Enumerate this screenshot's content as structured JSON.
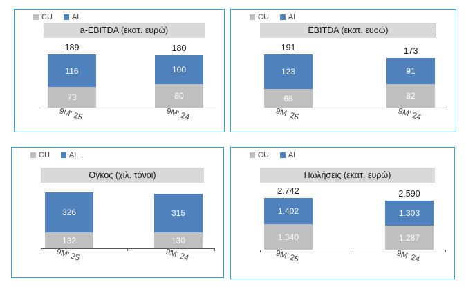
{
  "colors": {
    "cu": "#BFBFBF",
    "al": "#4F81BD",
    "title_band": "#D9D9D9",
    "panel_border": "#29ABE2",
    "axis": "#595959",
    "in_bar_text": "#FFFFFF"
  },
  "legend": {
    "cu_label": "CU",
    "al_label": "AL"
  },
  "chart_data": [
    {
      "type": "bar",
      "stacked": true,
      "title": "a-EBITDA (εκατ. ευρώ)",
      "categories": [
        "9M' 25",
        "9M' 24"
      ],
      "series": [
        {
          "name": "CU",
          "values": [
            73,
            80
          ],
          "labels": [
            "73",
            "80"
          ]
        },
        {
          "name": "AL",
          "values": [
            116,
            100
          ],
          "labels": [
            "116",
            "100"
          ]
        }
      ],
      "totals": {
        "values": [
          189,
          180
        ],
        "labels": [
          "189",
          "180"
        ]
      },
      "show_totals": true,
      "show_ticks": false,
      "legend_position": "top-left",
      "legend_entries": [
        "CU",
        "AL"
      ]
    },
    {
      "type": "bar",
      "stacked": true,
      "title": "EBITDA (εκατ. ευοώ)",
      "categories": [
        "9M' 25",
        "9M' 24"
      ],
      "series": [
        {
          "name": "CU",
          "values": [
            68,
            82
          ],
          "labels": [
            "68",
            "82"
          ]
        },
        {
          "name": "AL",
          "values": [
            123,
            91
          ],
          "labels": [
            "123",
            "91"
          ]
        }
      ],
      "totals": {
        "values": [
          191,
          173
        ],
        "labels": [
          "191",
          "173"
        ]
      },
      "show_totals": true,
      "show_ticks": false,
      "legend_position": "top-left",
      "legend_entries": [
        "CU",
        "AL"
      ]
    },
    {
      "type": "bar",
      "stacked": true,
      "title": "Όγκος (χιλ. τόνοι)",
      "categories": [
        "9M' 25",
        "9M' 24"
      ],
      "series": [
        {
          "name": "CU",
          "values": [
            132,
            130
          ],
          "labels": [
            "132",
            "130"
          ]
        },
        {
          "name": "AL",
          "values": [
            326,
            315
          ],
          "labels": [
            "326",
            "315"
          ]
        }
      ],
      "totals": null,
      "show_totals": false,
      "show_ticks": true,
      "legend_position": "top-left",
      "legend_entries": [
        "CU",
        "AL"
      ]
    },
    {
      "type": "bar",
      "stacked": true,
      "title": "Πωλήσεις (εκατ. ευρώ)",
      "categories": [
        "9M' 25",
        "9M' 24"
      ],
      "series": [
        {
          "name": "CU",
          "values": [
            1340,
            1287
          ],
          "labels": [
            "1.340",
            "1.287"
          ]
        },
        {
          "name": "AL",
          "values": [
            1402,
            1303
          ],
          "labels": [
            "1.402",
            "1.303"
          ]
        }
      ],
      "totals": {
        "values": [
          2742,
          2590
        ],
        "labels": [
          "2.742",
          "2.590"
        ]
      },
      "show_totals": true,
      "show_ticks": true,
      "legend_position": "top-left",
      "legend_entries": [
        "CU",
        "AL"
      ]
    }
  ]
}
